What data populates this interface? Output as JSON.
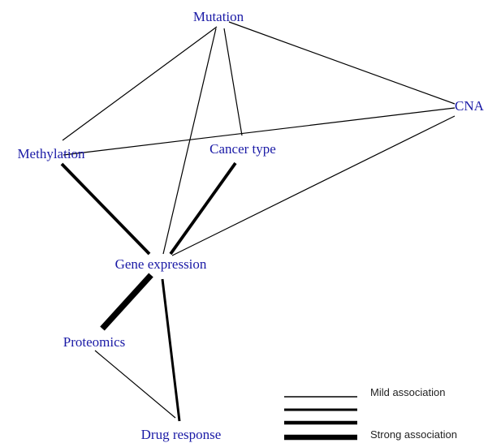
{
  "nodes": [
    {
      "id": "mutation",
      "label": "Mutation"
    },
    {
      "id": "cna",
      "label": "CNA"
    },
    {
      "id": "methylation",
      "label": "Methylation"
    },
    {
      "id": "cancer_type",
      "label": "Cancer type"
    },
    {
      "id": "gene_expression",
      "label": "Gene expression"
    },
    {
      "id": "proteomics",
      "label": "Proteomics"
    },
    {
      "id": "drug_response",
      "label": "Drug response"
    }
  ],
  "edges": [
    {
      "from": "mutation",
      "to": "methylation",
      "strength": 1
    },
    {
      "from": "mutation",
      "to": "cna",
      "strength": 1
    },
    {
      "from": "mutation",
      "to": "cancer_type",
      "strength": 1
    },
    {
      "from": "mutation",
      "to": "gene_expression",
      "strength": 1
    },
    {
      "from": "methylation",
      "to": "cna",
      "strength": 1
    },
    {
      "from": "cna",
      "to": "gene_expression",
      "strength": 1
    },
    {
      "from": "methylation",
      "to": "gene_expression",
      "strength": 3
    },
    {
      "from": "cancer_type",
      "to": "gene_expression",
      "strength": 3
    },
    {
      "from": "gene_expression",
      "to": "proteomics",
      "strength": 4
    },
    {
      "from": "gene_expression",
      "to": "drug_response",
      "strength": 2
    },
    {
      "from": "proteomics",
      "to": "drug_response",
      "strength": 1
    }
  ],
  "legend": {
    "mild_label": "Mild association",
    "strong_label": "Strong association",
    "levels": [
      1,
      2,
      3,
      4
    ]
  },
  "colors": {
    "label": "#1a1aa6",
    "edge": "#000000"
  }
}
